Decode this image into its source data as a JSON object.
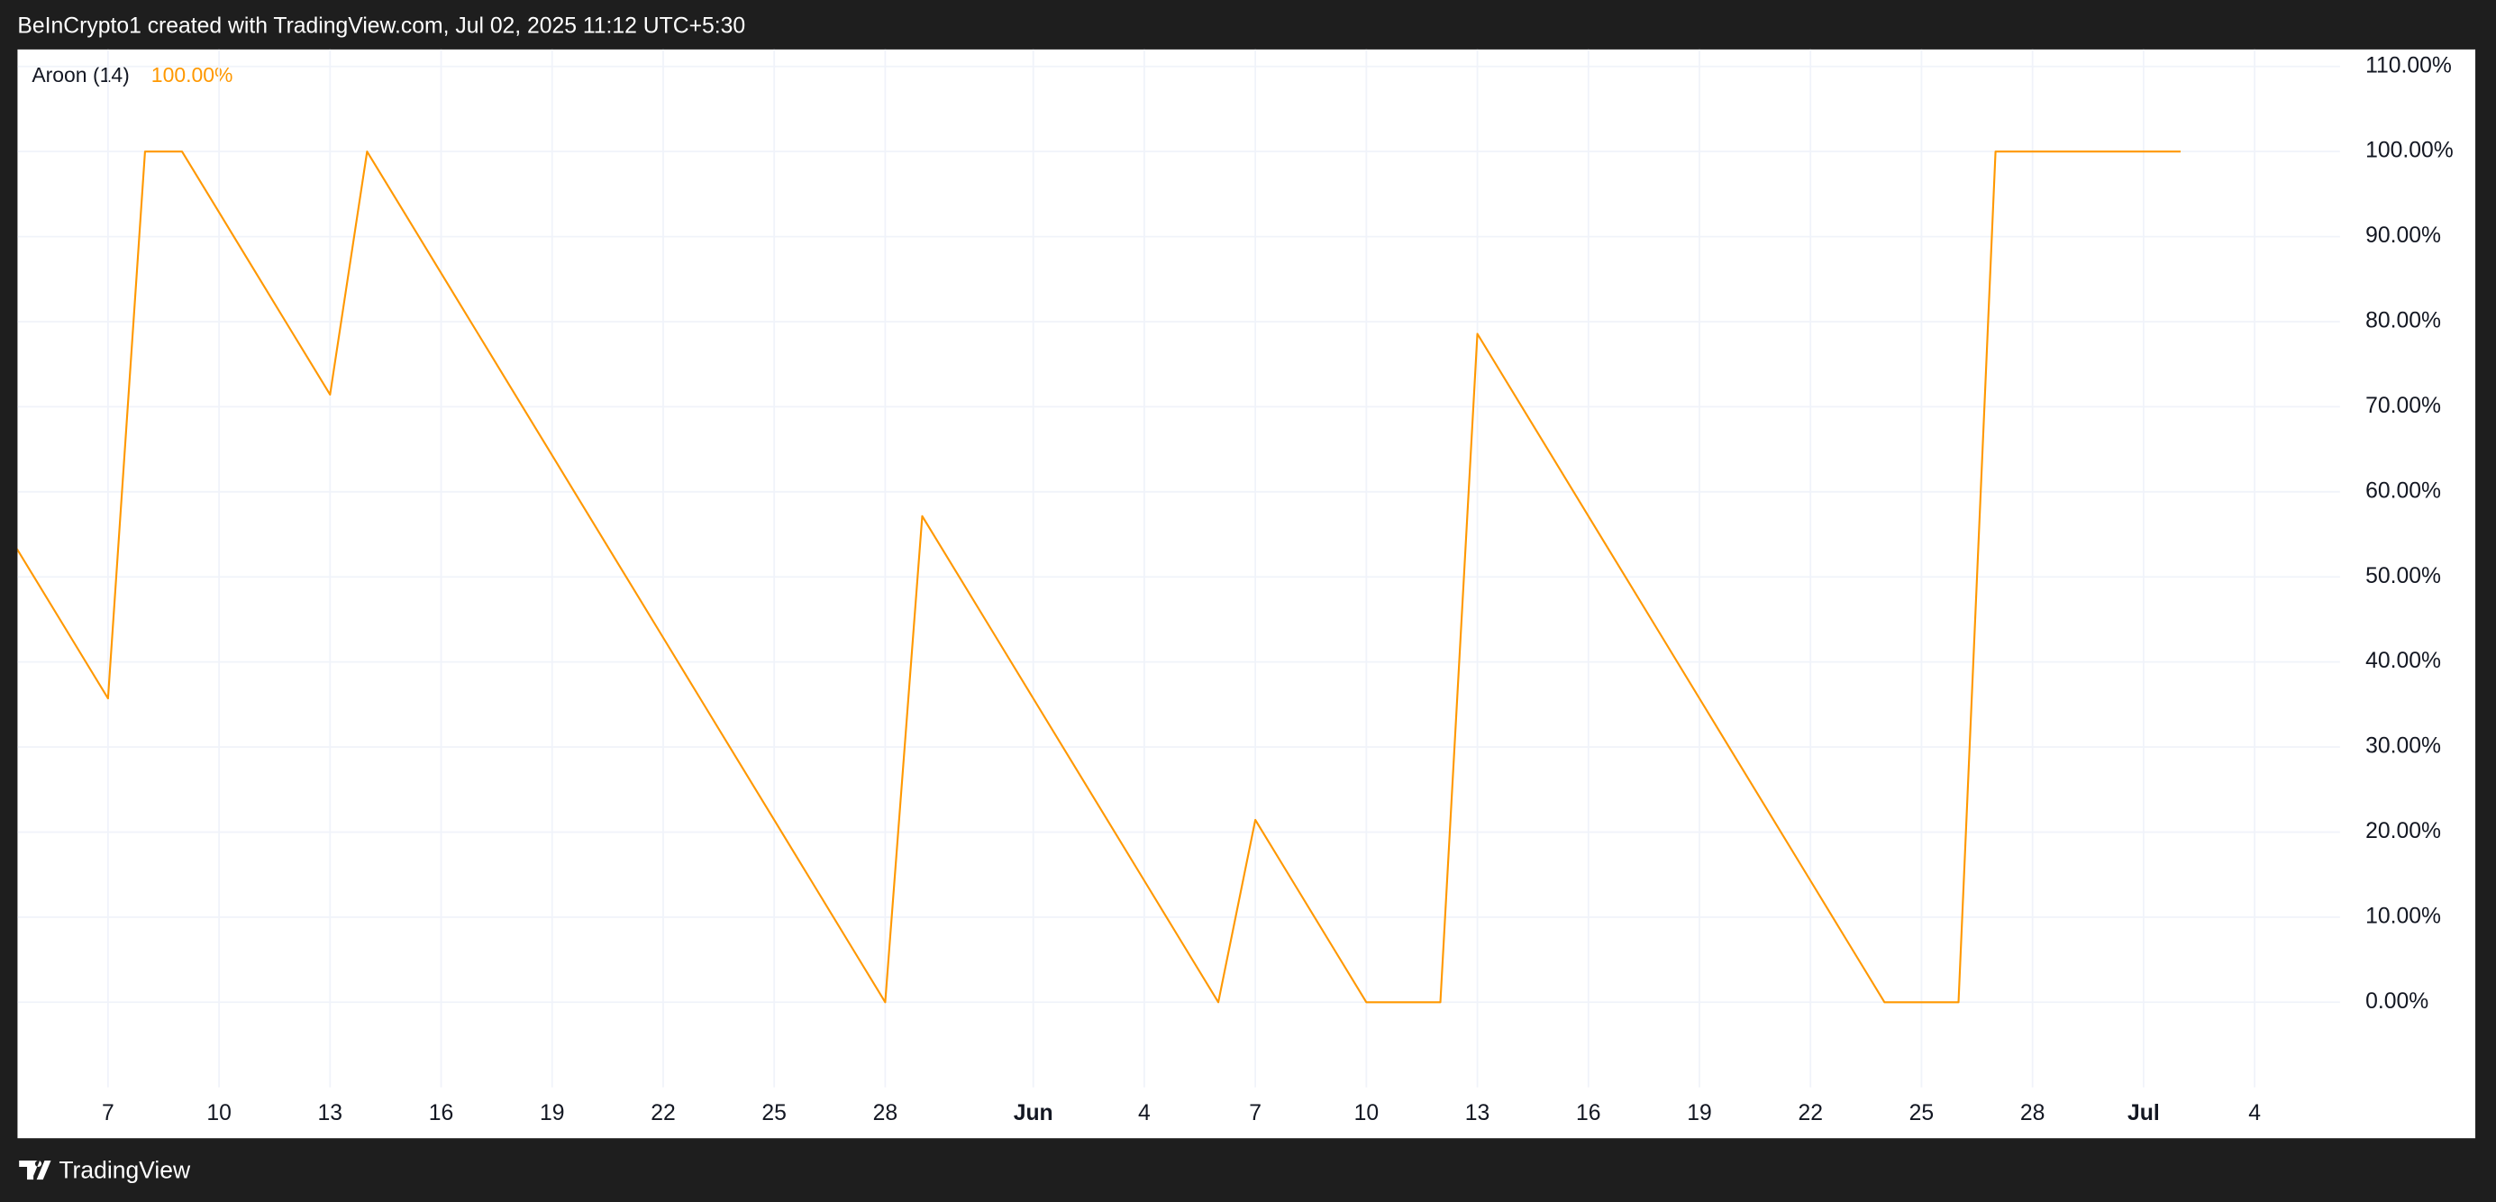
{
  "header": "BeInCrypto1 created with TradingView.com, Jul 02, 2025 11:12 UTC+5:30",
  "footer": "TradingView",
  "chart_data": {
    "type": "line",
    "legend_value": "100.00%",
    "categories": [
      null,
      null,
      null,
      "7",
      null,
      null,
      "10",
      null,
      null,
      "13",
      null,
      null,
      "16",
      null,
      null,
      "19",
      null,
      null,
      "22",
      null,
      null,
      "25",
      null,
      null,
      "28",
      null,
      null,
      null,
      "Jun",
      null,
      null,
      "4",
      null,
      null,
      "7",
      null,
      null,
      "10",
      null,
      null,
      "13",
      null,
      null,
      "16",
      null,
      null,
      "19",
      null,
      null,
      "22",
      null,
      null,
      "25",
      null,
      null,
      "28",
      null,
      null,
      "Jul",
      null,
      null,
      "4",
      null,
      null
    ],
    "series": [
      {
        "name": "Aroon (14)",
        "color": "#ff9800",
        "values": [
          57.14,
          50,
          42.86,
          35.71,
          100,
          100,
          92.86,
          85.71,
          78.57,
          71.43,
          100,
          92.86,
          85.71,
          78.57,
          71.43,
          64.29,
          57.14,
          50,
          42.86,
          35.71,
          28.57,
          21.43,
          14.29,
          7.14,
          0,
          57.14,
          50,
          42.86,
          35.71,
          28.57,
          21.43,
          14.29,
          7.14,
          0,
          21.43,
          14.29,
          7.14,
          0,
          0,
          0,
          78.57,
          71.43,
          64.29,
          57.14,
          50,
          42.86,
          35.71,
          28.57,
          21.43,
          14.29,
          7.14,
          0,
          0,
          0,
          100,
          100,
          100,
          100,
          100,
          100,
          null,
          null,
          null,
          null
        ]
      }
    ],
    "ylim": [
      -10,
      112
    ],
    "yticks": [
      {
        "value": 0,
        "label": "0.00%"
      },
      {
        "value": 10,
        "label": "10.00%"
      },
      {
        "value": 20,
        "label": "20.00%"
      },
      {
        "value": 30,
        "label": "30.00%"
      },
      {
        "value": 40,
        "label": "40.00%"
      },
      {
        "value": 50,
        "label": "50.00%"
      },
      {
        "value": 60,
        "label": "60.00%"
      },
      {
        "value": 70,
        "label": "70.00%"
      },
      {
        "value": 80,
        "label": "80.00%"
      },
      {
        "value": 90,
        "label": "90.00%"
      },
      {
        "value": 100,
        "label": "100.00%"
      },
      {
        "value": 110,
        "label": "110.00%"
      }
    ],
    "grid": true
  }
}
